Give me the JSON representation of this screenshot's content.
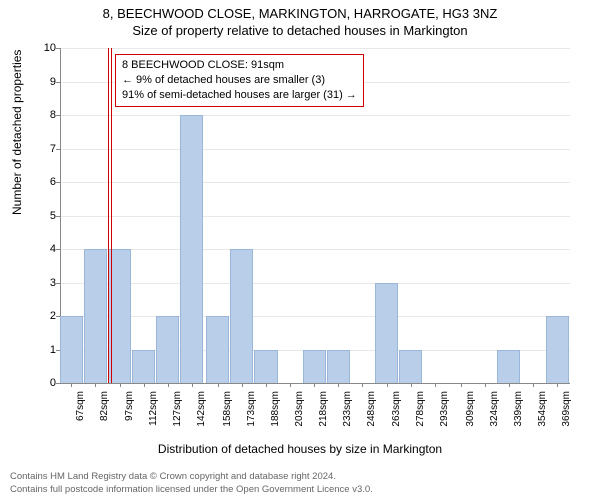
{
  "titles": {
    "line1": "8, BEECHWOOD CLOSE, MARKINGTON, HARROGATE, HG3 3NZ",
    "line2": "Size of property relative to detached houses in Markington"
  },
  "axes": {
    "ylabel": "Number of detached properties",
    "xlabel": "Distribution of detached houses by size in Markington",
    "ylim": [
      0,
      10
    ],
    "yticks": [
      0,
      1,
      2,
      3,
      4,
      5,
      6,
      7,
      8,
      9,
      10
    ],
    "xticks": [
      "67sqm",
      "82sqm",
      "97sqm",
      "112sqm",
      "127sqm",
      "142sqm",
      "158sqm",
      "173sqm",
      "188sqm",
      "203sqm",
      "218sqm",
      "233sqm",
      "248sqm",
      "263sqm",
      "278sqm",
      "293sqm",
      "309sqm",
      "324sqm",
      "339sqm",
      "354sqm",
      "369sqm"
    ],
    "xtick_fontsize": 10,
    "ytick_fontsize": 11,
    "label_fontsize": 12
  },
  "chart": {
    "type": "histogram",
    "bar_color": "#b9cfe9",
    "bar_border": "#9ab6d8",
    "grid_color": "#e8e8e8",
    "background_color": "#ffffff",
    "marker_color": "#d00000",
    "bin_width_sqm": 15,
    "x_min": 60,
    "x_max": 377,
    "bars": [
      {
        "x": 67,
        "count": 2
      },
      {
        "x": 82,
        "count": 4
      },
      {
        "x": 97,
        "count": 4
      },
      {
        "x": 112,
        "count": 1
      },
      {
        "x": 127,
        "count": 2
      },
      {
        "x": 142,
        "count": 8
      },
      {
        "x": 158,
        "count": 2
      },
      {
        "x": 173,
        "count": 4
      },
      {
        "x": 188,
        "count": 1
      },
      {
        "x": 218,
        "count": 1
      },
      {
        "x": 233,
        "count": 1
      },
      {
        "x": 263,
        "count": 3
      },
      {
        "x": 278,
        "count": 1
      },
      {
        "x": 339,
        "count": 1
      },
      {
        "x": 369,
        "count": 2
      }
    ],
    "marker_at_sqm": 91
  },
  "annotation": {
    "line1": "8 BEECHWOOD CLOSE: 91sqm",
    "line2": "← 9% of detached houses are smaller (3)",
    "line3": "91% of semi-detached houses are larger (31) →"
  },
  "footer": {
    "line1": "Contains HM Land Registry data © Crown copyright and database right 2024.",
    "line2": "Contains full postcode information licensed under the Open Government Licence v3.0."
  }
}
